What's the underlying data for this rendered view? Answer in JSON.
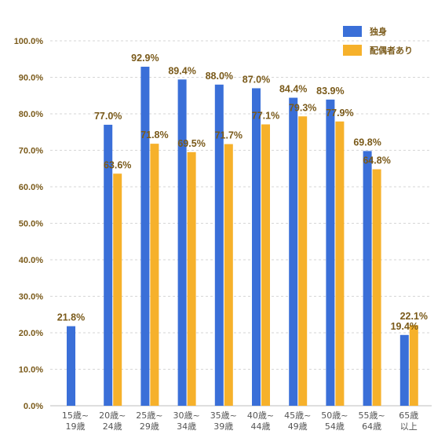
{
  "chart_data": {
    "type": "bar",
    "categories": [
      "15歳~\n19歳",
      "20歳~\n24歳",
      "25歳~\n29歳",
      "30歳~\n34歳",
      "35歳~\n39歳",
      "40歳~\n44歳",
      "45歳~\n49歳",
      "50歳~\n54歳",
      "55歳~\n64歳",
      "65歳\n以上"
    ],
    "series": [
      {
        "name": "独身",
        "color": "#3a6fd8",
        "values": [
          21.8,
          77.0,
          92.9,
          89.4,
          88.0,
          87.0,
          84.4,
          83.9,
          69.8,
          19.4
        ],
        "labels": [
          "21.8%",
          "77.0%",
          "92.9%",
          "89.4%",
          "88.0%",
          "87.0%",
          "84.4%",
          "83.9%",
          "69.8%",
          "19.4%"
        ]
      },
      {
        "name": "配偶者あり",
        "color": "#f6b12b",
        "values": [
          null,
          63.6,
          71.8,
          69.5,
          71.7,
          77.1,
          79.3,
          77.9,
          64.8,
          22.1
        ],
        "labels": [
          "",
          "63.6%",
          "71.8%",
          "69.5%",
          "71.7%",
          "77.1%",
          "79.3%",
          "77.9%",
          "64.8%",
          "22.1%"
        ]
      }
    ],
    "yticks": [
      "0.0%",
      "10.0%",
      "20.0%",
      "30.0%",
      "40.0%",
      "50.0%",
      "60.0%",
      "70.0%",
      "80.0%",
      "90.0%",
      "100.0%"
    ],
    "ylim": [
      0,
      100
    ],
    "grid": true,
    "legend": "top-right",
    "title": "",
    "xlabel": "",
    "ylabel": ""
  }
}
